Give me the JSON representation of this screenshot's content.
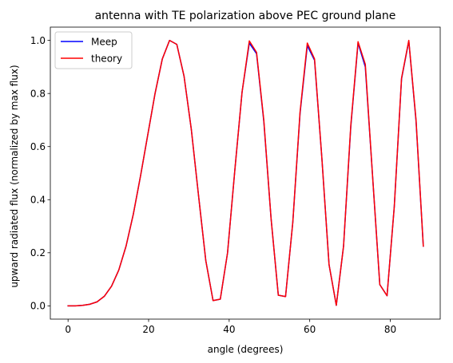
{
  "chart_data": {
    "type": "line",
    "title": "antenna with TE polarization above PEC ground plane",
    "xlabel": "angle (degrees)",
    "ylabel": "upward radiated flux (normalized by max flux)",
    "xlim": [
      -4.4,
      92.4
    ],
    "ylim": [
      -0.05,
      1.05
    ],
    "xticks": [
      0,
      20,
      40,
      60,
      80
    ],
    "yticks": [
      0.0,
      0.2,
      0.4,
      0.6,
      0.8,
      1.0
    ],
    "xtick_labels": [
      "0",
      "20",
      "40",
      "60",
      "80"
    ],
    "ytick_labels": [
      "0.0",
      "0.2",
      "0.4",
      "0.6",
      "0.8",
      "1.0"
    ],
    "legend_position": "upper left",
    "grid": false,
    "x": [
      0,
      1.8,
      3.6,
      5.4,
      7.2,
      9.0,
      10.8,
      12.6,
      14.4,
      16.2,
      18.0,
      19.8,
      21.6,
      23.4,
      25.2,
      27.0,
      28.8,
      30.6,
      32.4,
      34.2,
      36.0,
      37.8,
      39.6,
      41.4,
      43.2,
      45.0,
      46.8,
      48.6,
      50.4,
      52.2,
      54.0,
      55.8,
      57.6,
      59.4,
      61.2,
      63.0,
      64.8,
      66.6,
      68.4,
      70.2,
      72.0,
      73.8,
      75.6,
      77.4,
      79.2,
      81.0,
      82.8,
      84.6,
      86.4,
      88.2
    ],
    "series": [
      {
        "name": "Meep",
        "color": "#0000ff",
        "values": [
          0.0,
          0.0,
          0.002,
          0.006,
          0.015,
          0.036,
          0.074,
          0.135,
          0.225,
          0.345,
          0.49,
          0.645,
          0.8,
          0.93,
          1.0,
          0.985,
          0.865,
          0.665,
          0.415,
          0.17,
          0.02,
          0.025,
          0.2,
          0.51,
          0.805,
          0.99,
          0.95,
          0.695,
          0.33,
          0.04,
          0.035,
          0.315,
          0.725,
          0.98,
          0.925,
          0.56,
          0.155,
          0.002,
          0.225,
          0.675,
          0.99,
          0.9,
          0.49,
          0.08,
          0.038,
          0.375,
          0.855,
          0.998,
          0.695,
          0.225
        ]
      },
      {
        "name": "theory",
        "color": "#ff0000",
        "values": [
          0.0,
          0.0,
          0.002,
          0.006,
          0.015,
          0.036,
          0.074,
          0.135,
          0.225,
          0.345,
          0.49,
          0.645,
          0.8,
          0.93,
          1.0,
          0.985,
          0.865,
          0.665,
          0.415,
          0.17,
          0.02,
          0.025,
          0.2,
          0.51,
          0.805,
          0.998,
          0.955,
          0.7,
          0.33,
          0.04,
          0.035,
          0.315,
          0.73,
          0.99,
          0.93,
          0.56,
          0.155,
          0.002,
          0.225,
          0.68,
          0.995,
          0.91,
          0.49,
          0.08,
          0.038,
          0.375,
          0.858,
          1.0,
          0.7,
          0.225
        ]
      }
    ]
  }
}
